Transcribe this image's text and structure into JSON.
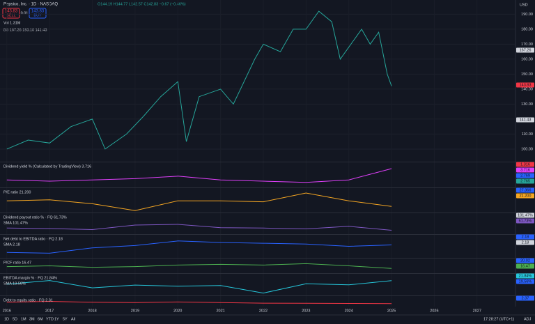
{
  "header": {
    "symbol": "Pepsico, Inc. · 1D · NASDAQ",
    "ohlc": "O144.19 H144.77 L142.57 C142.83 −0.67 (−0.46%)",
    "sell": "143.83",
    "sell_label": "SELL",
    "spread": "0.01",
    "buy": "143.83",
    "buy_label": "BUY",
    "vol": "Vol  1.31M",
    "bb": "BB  167.26  193.10  141.43",
    "currency": "USD"
  },
  "chart_data": [
    {
      "type": "line",
      "x": [
        2016.0,
        2016.5,
        2017.0,
        2017.5,
        2018.0,
        2018.3,
        2018.8,
        2019.2,
        2019.6,
        2020.0,
        2020.2,
        2020.5,
        2021.0,
        2021.3,
        2021.8,
        2022.0,
        2022.4,
        2022.7,
        2023.0,
        2023.3,
        2023.6,
        2023.8,
        2024.0,
        2024.3,
        2024.5,
        2024.7,
        2024.9,
        2025.0
      ],
      "values": [
        100,
        106,
        104,
        115,
        120,
        100,
        110,
        122,
        135,
        145,
        105,
        135,
        140,
        130,
        160,
        170,
        165,
        180,
        180,
        192,
        185,
        160,
        168,
        180,
        170,
        178,
        150,
        142
      ],
      "color": "#26a69a",
      "xlim": [
        2015.84,
        2027.9
      ],
      "ylim": [
        91.6,
        199.5
      ],
      "xticks": [
        2016,
        2017,
        2018,
        2019,
        2020,
        2021,
        2022,
        2023,
        2024,
        2025,
        2026,
        2027
      ],
      "yticks": [
        {
          "value": 100,
          "label": "100.00"
        },
        {
          "value": 110,
          "label": "110.00"
        },
        {
          "value": 120,
          "label": "120.00"
        },
        {
          "value": 130,
          "label": "130.00"
        },
        {
          "value": 140,
          "label": "140.00"
        },
        {
          "value": 150,
          "label": "150.00"
        },
        {
          "value": 160,
          "label": "160.00"
        },
        {
          "value": 170,
          "label": "170.00"
        },
        {
          "value": 180,
          "label": "180.00"
        },
        {
          "value": 190,
          "label": "190.00"
        }
      ],
      "tags": [
        {
          "label": "167.26",
          "color": "#d1d4dc"
        },
        {
          "label": "143.83",
          "color": "#f23645"
        },
        {
          "label": "141.43",
          "color": "#d1d4dc"
        }
      ]
    },
    {
      "type": "line",
      "title": "Dividend yield % (Calculated by TradingView)  3.716",
      "x": [
        2016,
        2017,
        2018,
        2019,
        2020,
        2021,
        2022,
        2023,
        2024,
        2025
      ],
      "values": [
        2.8,
        2.7,
        2.8,
        2.9,
        3.1,
        2.8,
        2.7,
        2.6,
        2.8,
        3.7
      ],
      "color": "#e040fb",
      "xlim": [
        2015.84,
        2027.9
      ],
      "ylim": [
        2.2,
        4.2
      ],
      "tags": [
        {
          "label": "1.316",
          "color": "#f23645"
        },
        {
          "label": "3.716",
          "color": "#e040fb"
        },
        {
          "label": "2.769",
          "color": "#2962ff"
        },
        {
          "label": "2.765",
          "color": "#26a69a"
        }
      ]
    },
    {
      "type": "line",
      "title": "P/E ratio  21.200",
      "x": [
        2016,
        2017,
        2018,
        2019,
        2020,
        2021,
        2022,
        2023,
        2024,
        2025
      ],
      "values": [
        27,
        28,
        24,
        17,
        27,
        27,
        26,
        35,
        27,
        21.2
      ],
      "color": "#f5a623",
      "xlim": [
        2015.84,
        2027.9
      ],
      "ylim": [
        15,
        40
      ],
      "tags": [
        {
          "label": "27.366",
          "color": "#2962ff"
        },
        {
          "label": "21.200",
          "color": "#f5a623"
        }
      ]
    },
    {
      "type": "line",
      "title": "Dividend payout ratio % · FQ  61.73%",
      "sma": "SMA  101.47%",
      "x": [
        2016,
        2017,
        2018,
        2019,
        2020,
        2021,
        2022,
        2023,
        2024,
        2025
      ],
      "values": [
        75,
        72,
        66,
        92,
        96,
        77,
        75,
        70,
        85,
        62
      ],
      "color": "#7e57c2",
      "xlim": [
        2015.84,
        2027.9
      ],
      "ylim": [
        40,
        160
      ],
      "tags": [
        {
          "label": "101.47%",
          "color": "#d1d4dc"
        },
        {
          "label": "61.73%",
          "color": "#7e57c2"
        }
      ]
    },
    {
      "type": "line",
      "title": "Net debt to EBITDA ratio · FQ  2.18",
      "sma": "SMA  2.18",
      "x": [
        2016,
        2017,
        2018,
        2019,
        2020,
        2021,
        2022,
        2023,
        2024,
        2025
      ],
      "values": [
        1.2,
        1.1,
        1.8,
        2.1,
        2.7,
        2.5,
        2.4,
        2.3,
        2.0,
        2.18
      ],
      "color": "#2962ff",
      "xlim": [
        2015.84,
        2027.9
      ],
      "ylim": [
        0.5,
        3.5
      ],
      "tags": [
        {
          "label": "2.18",
          "color": "#2962ff"
        },
        {
          "label": "2.18",
          "color": "#d1d4dc"
        }
      ]
    },
    {
      "type": "line",
      "title": "P/CF ratio  16.47",
      "x": [
        2016,
        2017,
        2018,
        2019,
        2020,
        2021,
        2022,
        2023,
        2024,
        2025
      ],
      "values": [
        19,
        20,
        18,
        19,
        21,
        22,
        21,
        23,
        20,
        16.47
      ],
      "color": "#4caf50",
      "xlim": [
        2015.84,
        2027.9
      ],
      "ylim": [
        10,
        30
      ],
      "tags": [
        {
          "label": "20.02",
          "color": "#2962ff"
        },
        {
          "label": "16.47",
          "color": "#4caf50"
        }
      ]
    },
    {
      "type": "line",
      "title": "EBITDA margin % · FQ  21.84%",
      "sma": "SMA  19.56%",
      "x": [
        2016,
        2017,
        2018,
        2019,
        2020,
        2021,
        2022,
        2023,
        2024,
        2025
      ],
      "values": [
        20.2,
        21.9,
        18.5,
        19.8,
        19.3,
        19.6,
        16.1,
        20.4,
        19.9,
        21.84
      ],
      "color": "#26c6da",
      "xlim": [
        2015.84,
        2027.9
      ],
      "ylim": [
        15,
        25
      ],
      "tags": [
        {
          "label": "21.84%",
          "color": "#26c6da"
        },
        {
          "label": "19.56%",
          "color": "#2962ff"
        }
      ]
    },
    {
      "type": "line",
      "title": "Debt to equity ratio · FQ  2.31",
      "x": [
        2016,
        2017,
        2018,
        2019,
        2020,
        2021,
        2022,
        2023,
        2024,
        2025
      ],
      "values": [
        3.3,
        4.0,
        3.3,
        3.1,
        3.5,
        3.1,
        2.6,
        2.5,
        2.4,
        2.31
      ],
      "color": "#f23645",
      "xlim": [
        2015.84,
        2027.9
      ],
      "ylim": [
        0,
        8
      ],
      "tags": [
        {
          "label": "2.37",
          "color": "#2962ff"
        }
      ]
    }
  ],
  "toolbar": {
    "ranges": [
      "1D",
      "5D",
      "1M",
      "3M",
      "6M",
      "YTD",
      "1Y",
      "5Y",
      "All"
    ],
    "clock": "17:28:27 (UTC+1)",
    "adj": "ADJ"
  }
}
